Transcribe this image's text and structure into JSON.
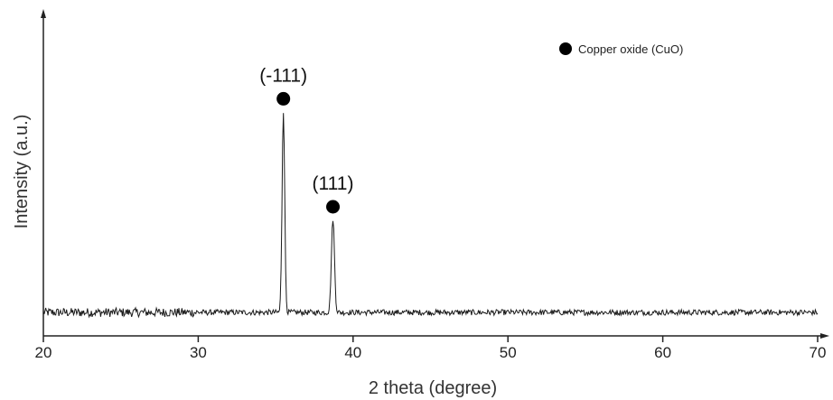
{
  "chart_data": {
    "type": "line",
    "xlabel": "2 theta (degree)",
    "ylabel": "Intensity (a.u.)",
    "xlim": [
      20,
      70
    ],
    "x_ticks": [
      20,
      30,
      40,
      50,
      60,
      70
    ],
    "x_tick_labels": [
      "20",
      "30",
      "40",
      "50",
      "60",
      "70"
    ],
    "y_ticks": [],
    "series": [
      {
        "name": "",
        "color": "#1a1a1a",
        "baseline": 1.0,
        "noise_amplitude": 0.12,
        "peaks": [
          {
            "x": 35.5,
            "height": 8.6,
            "width": 0.12
          },
          {
            "x": 38.7,
            "height": 4.0,
            "width": 0.14
          }
        ]
      }
    ],
    "annotations": [
      {
        "text": "(-111)",
        "x": 35.5,
        "marker": "filled-circle"
      },
      {
        "text": "(111)",
        "x": 38.7,
        "marker": "filled-circle"
      }
    ],
    "legend": {
      "position": "top-right",
      "entries": [
        {
          "marker": "filled-circle",
          "label": "Copper oxide (CuO)"
        }
      ]
    },
    "grid": false
  }
}
